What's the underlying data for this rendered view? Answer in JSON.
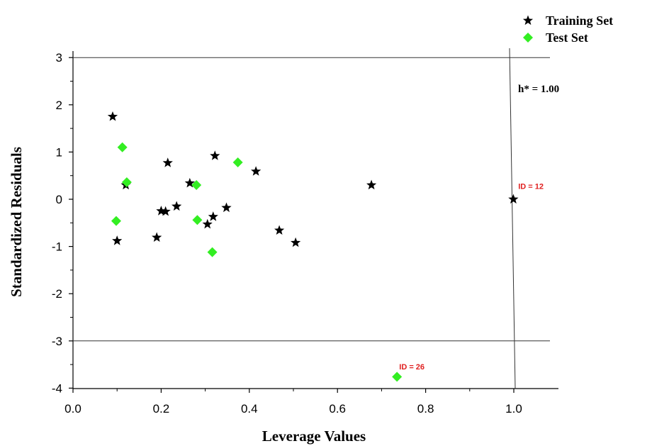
{
  "chart_data": {
    "type": "scatter",
    "xlabel": "Leverage Values",
    "ylabel": "Standardized Residuals",
    "xlim": [
      0.0,
      1.05
    ],
    "ylim": [
      -4,
      3
    ],
    "x_ticks": [
      "0.0",
      "0.2",
      "0.4",
      "0.6",
      "0.8",
      "1.0"
    ],
    "y_ticks": [
      "3",
      "2",
      "1",
      "0",
      "-1",
      "-2",
      "-3",
      "-4"
    ],
    "reference_lines": {
      "horizontal": [
        3,
        -3
      ],
      "vertical_label": "h* = 1.00",
      "vertical_x": 1.0
    },
    "legend_position": "top-right",
    "series": [
      {
        "name": "Training Set",
        "marker": "star",
        "color": "#000000",
        "points": [
          {
            "x": 0.09,
            "y": 1.75
          },
          {
            "x": 0.1,
            "y": -0.88
          },
          {
            "x": 0.12,
            "y": 0.3
          },
          {
            "x": 0.19,
            "y": -0.81
          },
          {
            "x": 0.2,
            "y": -0.25
          },
          {
            "x": 0.21,
            "y": -0.26
          },
          {
            "x": 0.215,
            "y": 0.77
          },
          {
            "x": 0.235,
            "y": -0.15
          },
          {
            "x": 0.265,
            "y": 0.34
          },
          {
            "x": 0.305,
            "y": -0.53
          },
          {
            "x": 0.318,
            "y": -0.37
          },
          {
            "x": 0.322,
            "y": 0.92
          },
          {
            "x": 0.348,
            "y": -0.18
          },
          {
            "x": 0.415,
            "y": 0.59
          },
          {
            "x": 0.468,
            "y": -0.66
          },
          {
            "x": 0.505,
            "y": -0.92
          },
          {
            "x": 0.677,
            "y": 0.3
          },
          {
            "x": 0.999,
            "y": 0.0
          }
        ]
      },
      {
        "name": "Test Set",
        "marker": "diamond",
        "color": "#33ee22",
        "points": [
          {
            "x": 0.098,
            "y": -0.46
          },
          {
            "x": 0.112,
            "y": 1.1
          },
          {
            "x": 0.122,
            "y": 0.36
          },
          {
            "x": 0.28,
            "y": 0.3
          },
          {
            "x": 0.282,
            "y": -0.44
          },
          {
            "x": 0.316,
            "y": -1.12
          },
          {
            "x": 0.374,
            "y": 0.78
          },
          {
            "x": 0.735,
            "y": -3.76
          }
        ]
      }
    ],
    "annotations": [
      {
        "text": "ID = 12",
        "x": 1.01,
        "y": 0.22,
        "color": "#e02020"
      },
      {
        "text": "ID = 26",
        "x": 0.74,
        "y": -3.6,
        "color": "#e02020"
      }
    ]
  }
}
